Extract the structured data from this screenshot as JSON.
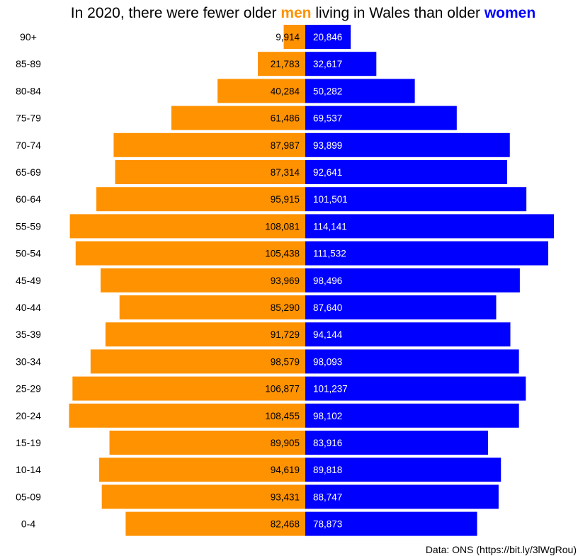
{
  "chart_data": {
    "type": "bar",
    "title": {
      "part1": "In 2020, there were fewer older ",
      "men_word": "men",
      "part2": " living in Wales than older ",
      "women_word": "women"
    },
    "caption": "Data: ONS (https://bit.ly/3lWgRou)",
    "categories": [
      "90+",
      "85-89",
      "80-84",
      "75-79",
      "70-74",
      "65-69",
      "60-64",
      "55-59",
      "50-54",
      "45-49",
      "40-44",
      "35-39",
      "30-34",
      "25-29",
      "20-24",
      "15-19",
      "10-14",
      "05-09",
      "0-4"
    ],
    "series": [
      {
        "key": "men",
        "color": "#ff9200",
        "values": [
          9914,
          21783,
          40284,
          61486,
          87987,
          87314,
          95915,
          108081,
          105438,
          93969,
          85290,
          91729,
          98579,
          106877,
          108455,
          89905,
          94619,
          93431,
          82468
        ],
        "labels": [
          "9,914",
          "21,783",
          "40,284",
          "61,486",
          "87,987",
          "87,314",
          "95,915",
          "108,081",
          "105,438",
          "93,969",
          "85,290",
          "91,729",
          "98,579",
          "106,877",
          "108,455",
          "89,905",
          "94,619",
          "93,431",
          "82,468"
        ]
      },
      {
        "key": "women",
        "color": "#0000ff",
        "values": [
          20846,
          32617,
          50282,
          69537,
          93899,
          92641,
          101501,
          114141,
          111532,
          98496,
          87640,
          94144,
          98093,
          101237,
          98102,
          83916,
          89818,
          88747,
          78873
        ],
        "labels": [
          "20,846",
          "32,617",
          "50,282",
          "69,537",
          "93,899",
          "92,641",
          "101,501",
          "114,141",
          "111,532",
          "98,496",
          "87,640",
          "94,144",
          "98,093",
          "101,237",
          "98,102",
          "83,916",
          "89,818",
          "88,747",
          "78,873"
        ]
      }
    ],
    "grid": false,
    "legend": "none"
  }
}
